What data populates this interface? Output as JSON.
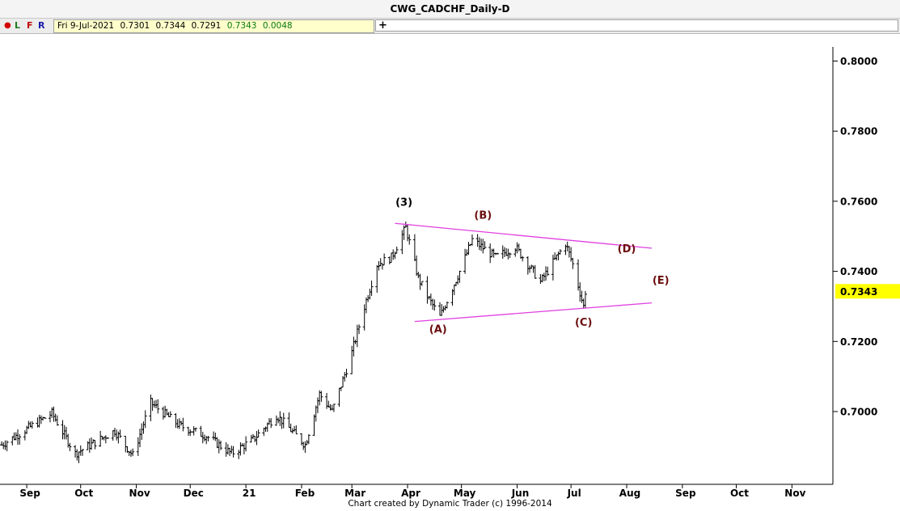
{
  "title": "CWG_CADCHF_Daily-D",
  "toolbar": {
    "dot": "●",
    "l_label": "L",
    "f_label": "F",
    "r_label": "R",
    "info_date": "Fri 9-Jul-2021",
    "info_open": "0.7301",
    "info_high": "0.7344",
    "info_low": "0.7291",
    "info_close": "0.7343",
    "info_change": "0.0048",
    "plus_label": "+"
  },
  "footer": "Chart created by Dynamic Trader  (c)  1996-2014",
  "colors": {
    "bars": "#000000",
    "trendlines": "#e040e0",
    "wave_label_black": "#000000",
    "wave_label_brown": "#6b0f0f",
    "price_tag": "#ffff00"
  },
  "chart_data": {
    "type": "ohlc",
    "title": "CWG_CADCHF_Daily-D",
    "xlabel": "",
    "ylabel": "",
    "ylim": [
      0.683,
      0.8
    ],
    "y_ticks": [
      "0.8000",
      "0.7800",
      "0.7600",
      "0.7400",
      "0.7200",
      "0.7000"
    ],
    "y_tick_values": [
      0.8,
      0.78,
      0.76,
      0.74,
      0.72,
      0.7
    ],
    "x_ticks": [
      "Sep",
      "Oct",
      "Nov",
      "Dec",
      "21",
      "Feb",
      "Mar",
      "Apr",
      "May",
      "Jun",
      "Jul",
      "Aug",
      "Sep",
      "Oct",
      "Nov"
    ],
    "x_tick_dates": [
      "2020-09-01",
      "2020-10-01",
      "2020-11-01",
      "2020-12-01",
      "2021-01-01",
      "2021-02-01",
      "2021-03-01",
      "2021-04-01",
      "2021-05-01",
      "2021-06-01",
      "2021-07-01",
      "2021-08-01",
      "2021-09-01",
      "2021-10-01",
      "2021-11-01"
    ],
    "x_range": [
      "2020-08-18",
      "2021-11-22"
    ],
    "last_price_label": "0.7343",
    "last_price": 0.7343,
    "price_anchors": [
      {
        "date": "2020-08-18",
        "close": 0.6905
      },
      {
        "date": "2020-09-15",
        "close": 0.6995
      },
      {
        "date": "2020-09-28",
        "close": 0.688
      },
      {
        "date": "2020-10-20",
        "close": 0.6945
      },
      {
        "date": "2020-10-30",
        "close": 0.6875
      },
      {
        "date": "2020-11-09",
        "close": 0.7025
      },
      {
        "date": "2020-11-25",
        "close": 0.696
      },
      {
        "date": "2020-12-10",
        "close": 0.693
      },
      {
        "date": "2020-12-24",
        "close": 0.688
      },
      {
        "date": "2021-01-05",
        "close": 0.692
      },
      {
        "date": "2021-01-18",
        "close": 0.699
      },
      {
        "date": "2021-02-03",
        "close": 0.6905
      },
      {
        "date": "2021-02-11",
        "close": 0.705
      },
      {
        "date": "2021-02-18",
        "close": 0.7
      },
      {
        "date": "2021-02-28",
        "close": 0.715
      },
      {
        "date": "2021-03-08",
        "close": 0.73
      },
      {
        "date": "2021-03-15",
        "close": 0.742
      },
      {
        "date": "2021-03-23",
        "close": 0.744
      },
      {
        "date": "2021-03-31",
        "close": 0.7525
      },
      {
        "date": "2021-04-07",
        "close": 0.738
      },
      {
        "date": "2021-04-13",
        "close": 0.732
      },
      {
        "date": "2021-04-19",
        "close": 0.727
      },
      {
        "date": "2021-04-30",
        "close": 0.74
      },
      {
        "date": "2021-05-07",
        "close": 0.749
      },
      {
        "date": "2021-05-20",
        "close": 0.744
      },
      {
        "date": "2021-05-31",
        "close": 0.747
      },
      {
        "date": "2021-06-14",
        "close": 0.737
      },
      {
        "date": "2021-06-28",
        "close": 0.748
      },
      {
        "date": "2021-07-02",
        "close": 0.742
      },
      {
        "date": "2021-07-08",
        "close": 0.73
      },
      {
        "date": "2021-07-09",
        "close": 0.7343
      }
    ],
    "trendlines": [
      {
        "name": "upper",
        "from": {
          "date": "2021-03-25",
          "price": 0.7537
        },
        "to": {
          "date": "2021-08-15",
          "price": 0.7466
        }
      },
      {
        "name": "lower",
        "from": {
          "date": "2021-04-05",
          "price": 0.7257
        },
        "to": {
          "date": "2021-08-15",
          "price": 0.731
        }
      }
    ],
    "annotations": [
      {
        "label": "(3)",
        "date": "2021-03-30",
        "price": 0.7587,
        "color": "black"
      },
      {
        "label": "(A)",
        "date": "2021-04-18",
        "price": 0.7225,
        "color": "brown"
      },
      {
        "label": "(B)",
        "date": "2021-05-13",
        "price": 0.755,
        "color": "brown"
      },
      {
        "label": "(C)",
        "date": "2021-07-08",
        "price": 0.7245,
        "color": "brown"
      },
      {
        "label": "(D)",
        "date": "2021-08-01",
        "price": 0.7455,
        "color": "brown"
      },
      {
        "label": "(E)",
        "date": "2021-08-20",
        "price": 0.7365,
        "color": "brown"
      }
    ]
  }
}
